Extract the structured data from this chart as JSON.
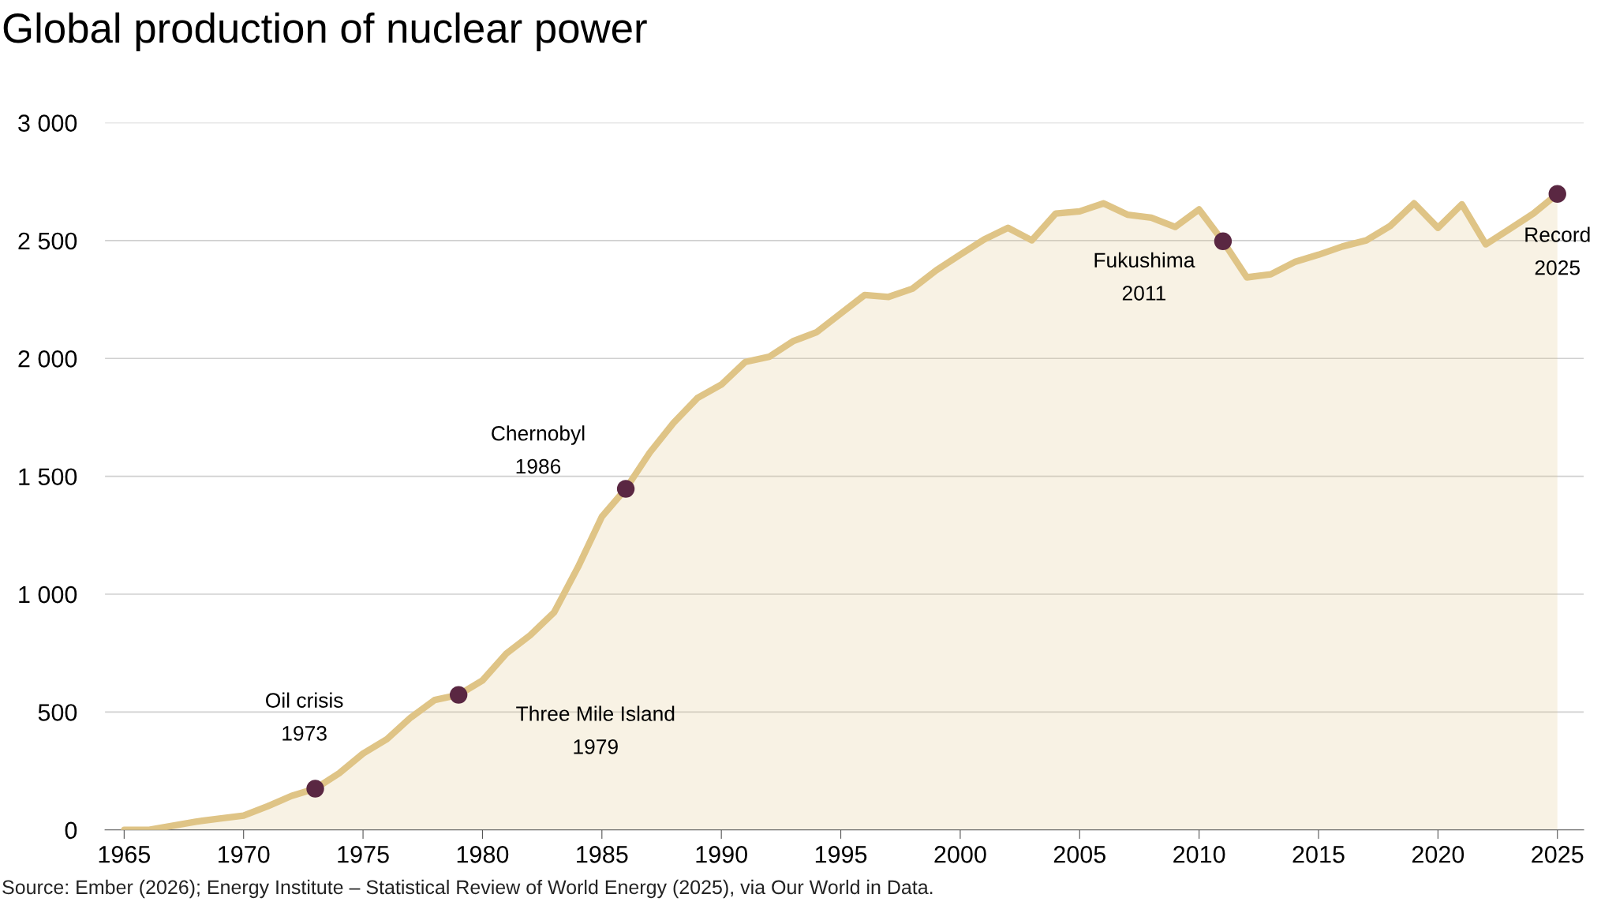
{
  "chart_data": {
    "type": "area",
    "title": "Global production of nuclear power",
    "x": [
      1965,
      1966,
      1967,
      1968,
      1969,
      1970,
      1971,
      1972,
      1973,
      1974,
      1975,
      1976,
      1977,
      1978,
      1979,
      1980,
      1981,
      1982,
      1983,
      1984,
      1985,
      1986,
      1987,
      1988,
      1989,
      1990,
      1991,
      1992,
      1993,
      1994,
      1995,
      1996,
      1997,
      1998,
      1999,
      2000,
      2001,
      2002,
      2003,
      2004,
      2005,
      2006,
      2007,
      2008,
      2009,
      2010,
      2011,
      2012,
      2013,
      2014,
      2015,
      2016,
      2017,
      2018,
      2019,
      2020,
      2021,
      2022,
      2023,
      2024,
      2025
    ],
    "series": [
      {
        "color": "#dfc486",
        "values": [
          0,
          0,
          17,
          35,
          48,
          61,
          100,
          144,
          175,
          240,
          324,
          385,
          477,
          551,
          573,
          634,
          748,
          826,
          923,
          1115,
          1329,
          1447,
          1600,
          1727,
          1832,
          1889,
          1985,
          2007,
          2073,
          2112,
          2191,
          2269,
          2261,
          2296,
          2374,
          2440,
          2505,
          2554,
          2501,
          2615,
          2624,
          2658,
          2610,
          2597,
          2558,
          2632,
          2497,
          2344,
          2357,
          2409,
          2440,
          2475,
          2501,
          2562,
          2658,
          2554,
          2654,
          2484,
          2549,
          2615,
          2698
        ]
      },
      {
        "type": "scatter",
        "color": "#5a2742",
        "x": [
          1973,
          1979,
          1986,
          2011,
          2025
        ],
        "values": [
          175,
          573,
          1447,
          2497,
          2698
        ]
      }
    ],
    "xlim": [
      1964.2,
      2026.1
    ],
    "ylim": [
      0,
      3000
    ],
    "xticks": [
      1965,
      1970,
      1975,
      1980,
      1985,
      1990,
      1995,
      2000,
      2005,
      2010,
      2015,
      2020,
      2025
    ],
    "yticks": [
      0,
      500,
      {
        "value": 1000,
        "label": "1 000"
      },
      {
        "value": 1500,
        "label": "1 500"
      },
      {
        "value": 2000,
        "label": "2 000"
      },
      {
        "value": 2500,
        "label": "2 500"
      },
      {
        "value": 3000,
        "label": "3 000"
      }
    ],
    "grid": "y",
    "annotations": [
      {
        "text": "Oil crisis\n1973",
        "x": 1973,
        "y": 175
      },
      {
        "text": "Three Mile Island\n1979",
        "x": 1979,
        "y": 573
      },
      {
        "text": "Chernobyl\n1986",
        "x": 1986,
        "y": 1447
      },
      {
        "text": "Fukushima\n2011",
        "x": 2011,
        "y": 2497
      },
      {
        "text": "Record\n2025",
        "x": 2025,
        "y": 2698
      },
      "Source: Ember (2026); Energy Institute – Statistical Review of World Energy (2025), via Our World in Data."
    ]
  }
}
